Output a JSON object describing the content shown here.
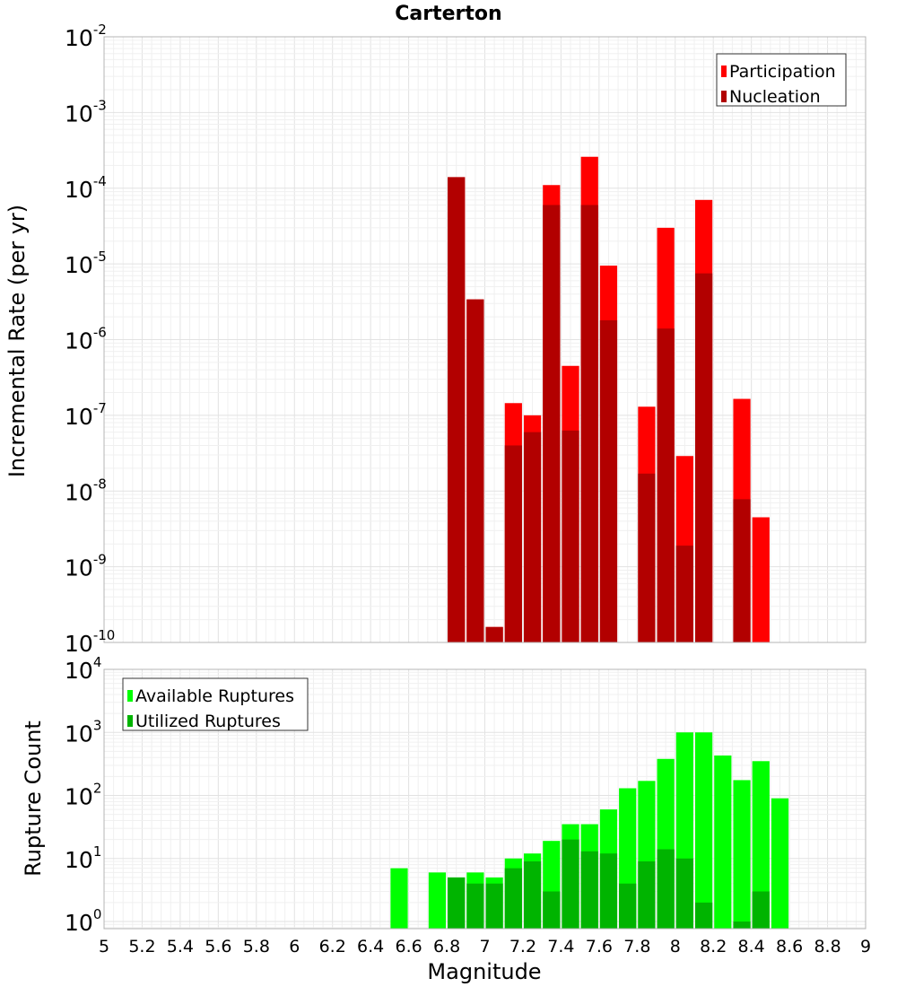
{
  "chart_data": [
    {
      "type": "bar",
      "title": "Carterton",
      "ylabel": "Incremental Rate (per yr)",
      "yscale": "log",
      "ylim": [
        1e-10,
        0.01
      ],
      "xlim": [
        5,
        9
      ],
      "y_tick_exponents": [
        -2,
        -3,
        -4,
        -5,
        -6,
        -7,
        -8,
        -9,
        -10
      ],
      "legend": {
        "position": "top-right",
        "entries": [
          "Participation",
          "Nucleation"
        ]
      },
      "colors": {
        "Participation": "#ff0000",
        "Nucleation": "#b20000"
      },
      "grid": true,
      "x": [
        6.85,
        6.95,
        7.05,
        7.15,
        7.25,
        7.35,
        7.45,
        7.55,
        7.65,
        7.85,
        7.95,
        8.05,
        8.15,
        8.35,
        8.45
      ],
      "series": [
        {
          "name": "Participation",
          "values": [
            0.00014,
            3.4e-06,
            1.6e-10,
            1.45e-07,
            1e-07,
            0.00011,
            4.5e-07,
            0.00026,
            9.5e-06,
            1.3e-07,
            3e-05,
            2.9e-08,
            7e-05,
            1.65e-07,
            4.5e-09
          ]
        },
        {
          "name": "Nucleation",
          "values": [
            0.00014,
            3.4e-06,
            1.6e-10,
            4e-08,
            6e-08,
            6e-05,
            6.3e-08,
            6e-05,
            1.8e-06,
            1.7e-08,
            1.4e-06,
            1.9e-09,
            7.5e-06,
            7.8e-09,
            null
          ]
        }
      ]
    },
    {
      "type": "bar",
      "ylabel": "Rupture Count",
      "xlabel": "Magnitude",
      "yscale": "log",
      "ylim": [
        0.77,
        10000
      ],
      "xlim": [
        5,
        9
      ],
      "y_tick_exponents": [
        4,
        3,
        2,
        1,
        0
      ],
      "x_ticks": [
        "5",
        "5.2",
        "5.4",
        "5.6",
        "5.8",
        "6",
        "6.2",
        "6.4",
        "6.6",
        "6.8",
        "7",
        "7.2",
        "7.4",
        "7.6",
        "7.8",
        "8",
        "8.2",
        "8.4",
        "8.6",
        "8.8",
        "9"
      ],
      "legend": {
        "position": "top-left",
        "entries": [
          "Available Ruptures",
          "Utilized Ruptures"
        ]
      },
      "colors": {
        "Available Ruptures": "#00ff00",
        "Utilized Ruptures": "#00b400"
      },
      "grid": true,
      "x": [
        6.55,
        6.75,
        6.85,
        6.95,
        7.05,
        7.15,
        7.25,
        7.35,
        7.45,
        7.55,
        7.65,
        7.75,
        7.85,
        7.95,
        8.05,
        8.15,
        8.25,
        8.35,
        8.45,
        8.55
      ],
      "series": [
        {
          "name": "Available Ruptures",
          "values": [
            7,
            6,
            5,
            6,
            5,
            10,
            12,
            19,
            35,
            35,
            60,
            130,
            170,
            380,
            1000,
            1000,
            430,
            175,
            350,
            90
          ]
        },
        {
          "name": "Utilized Ruptures",
          "values": [
            null,
            null,
            5,
            4,
            4,
            7,
            9,
            3,
            20,
            13,
            12,
            4,
            9,
            14,
            10,
            2,
            null,
            1,
            3,
            null
          ]
        }
      ]
    }
  ]
}
